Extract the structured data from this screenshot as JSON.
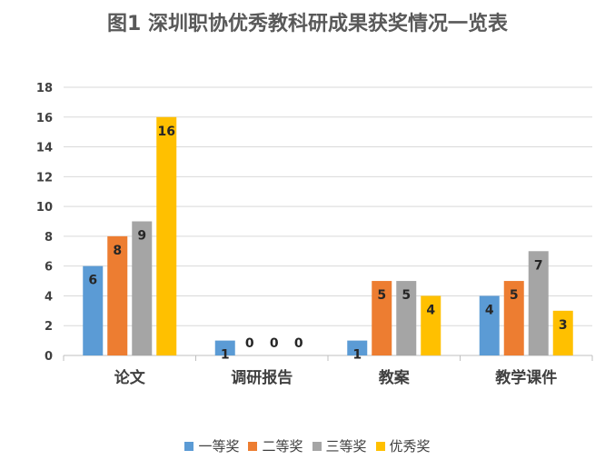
{
  "chart_data": {
    "type": "bar",
    "title": "图1  深圳职协优秀教科研成果获奖情况一览表",
    "categories": [
      "论文",
      "调研报告",
      "教案",
      "教学课件"
    ],
    "series": [
      {
        "name": "一等奖",
        "color": "#5B9BD5",
        "values": [
          6,
          1,
          1,
          4
        ]
      },
      {
        "name": "二等奖",
        "color": "#ED7D31",
        "values": [
          8,
          0,
          5,
          5
        ]
      },
      {
        "name": "三等奖",
        "color": "#A5A5A5",
        "values": [
          9,
          0,
          5,
          7
        ]
      },
      {
        "name": "优秀奖",
        "color": "#FFC000",
        "values": [
          16,
          0,
          4,
          3
        ]
      }
    ],
    "ylim": [
      0,
      18
    ],
    "yticks": [
      0,
      2,
      4,
      6,
      8,
      10,
      12,
      14,
      16,
      18
    ],
    "grid": true,
    "legend_position": "bottom",
    "data_labels": true
  }
}
